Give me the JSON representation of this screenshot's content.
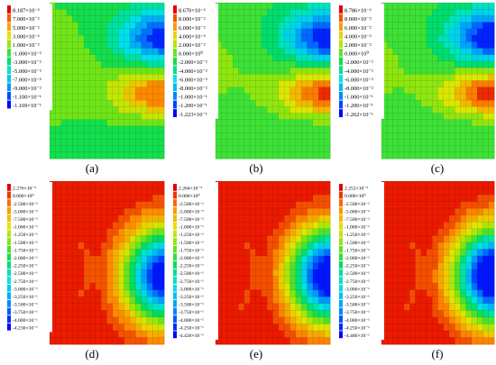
{
  "figure": {
    "captions": [
      "(a)",
      "(b)",
      "(c)",
      "(d)",
      "(e)",
      "(f)"
    ]
  },
  "chart_data": [
    {
      "type": "heatmap",
      "caption": "(a)",
      "legend_labels": [
        "8.187×10⁻²",
        "7.000×10⁻²",
        "5.000×10⁻²",
        "3.000×10⁻²",
        "1.000×10⁻²",
        "-1.000×10⁻²",
        "-3.000×10⁻²",
        "-5.000×10⁻²",
        "-7.000×10⁻²",
        "-9.000×10⁻²",
        "-1.100×10⁻¹",
        "-1.169×10⁻¹"
      ],
      "max": 0.08187,
      "min": -0.1169,
      "field": "vertical"
    },
    {
      "type": "heatmap",
      "caption": "(b)",
      "legend_labels": [
        "8.670×10⁻²",
        "8.000×10⁻²",
        "6.000×10⁻²",
        "4.000×10⁻²",
        "2.000×10⁻²",
        "0.000×10⁰",
        "-2.000×10⁻²",
        "-4.000×10⁻²",
        "-6.000×10⁻²",
        "-8.000×10⁻²",
        "-1.000×10⁻¹",
        "-1.200×10⁻¹",
        "-1.223×10⁻¹"
      ],
      "max": 0.0867,
      "min": -0.1223,
      "field": "vertical"
    },
    {
      "type": "heatmap",
      "caption": "(c)",
      "legend_labels": [
        "8.786×10⁻²",
        "8.000×10⁻²",
        "6.000×10⁻²",
        "4.000×10⁻²",
        "2.000×10⁻²",
        "0.000×10⁰",
        "-2.000×10⁻²",
        "-4.000×10⁻²",
        "-6.000×10⁻²",
        "-8.000×10⁻²",
        "-1.000×10⁻¹",
        "-1.200×10⁻¹",
        "-1.262×10⁻¹"
      ],
      "max": 0.08786,
      "min": -0.1262,
      "field": "vertical"
    },
    {
      "type": "heatmap",
      "caption": "(d)",
      "legend_labels": [
        "2.276×10⁻³",
        "0.000×10⁰",
        "-2.500×10⁻²",
        "-5.000×10⁻²",
        "-7.500×10⁻²",
        "-1.000×10⁻¹",
        "-1.250×10⁻¹",
        "-1.500×10⁻¹",
        "-1.750×10⁻¹",
        "-2.000×10⁻¹",
        "-2.250×10⁻¹",
        "-2.500×10⁻¹",
        "-2.750×10⁻¹",
        "-3.000×10⁻¹",
        "-3.250×10⁻¹",
        "-3.500×10⁻¹",
        "-3.750×10⁻¹",
        "-4.000×10⁻¹",
        "-4.236×10⁻¹"
      ],
      "max": 0.002276,
      "min": -0.4236,
      "field": "horizontal"
    },
    {
      "type": "heatmap",
      "caption": "(e)",
      "legend_labels": [
        "2.264×10⁻³",
        "0.000×10⁰",
        "-2.500×10⁻²",
        "-5.000×10⁻²",
        "-7.500×10⁻²",
        "-1.000×10⁻¹",
        "-1.250×10⁻¹",
        "-1.500×10⁻¹",
        "-1.750×10⁻¹",
        "-2.000×10⁻¹",
        "-2.250×10⁻¹",
        "-2.500×10⁻¹",
        "-2.750×10⁻¹",
        "-3.000×10⁻¹",
        "-3.250×10⁻¹",
        "-3.500×10⁻¹",
        "-3.750×10⁻¹",
        "-4.000×10⁻¹",
        "-4.250×10⁻¹",
        "-4.420×10⁻¹"
      ],
      "max": 0.002264,
      "min": -0.442,
      "field": "horizontal"
    },
    {
      "type": "heatmap",
      "caption": "(f)",
      "legend_labels": [
        "2.252×10⁻³",
        "0.000×10⁰",
        "-2.500×10⁻²",
        "-5.000×10⁻²",
        "-7.500×10⁻²",
        "-1.000×10⁻¹",
        "-1.250×10⁻¹",
        "-1.500×10⁻¹",
        "-1.750×10⁻¹",
        "-2.000×10⁻¹",
        "-2.250×10⁻¹",
        "-2.500×10⁻¹",
        "-2.750×10⁻¹",
        "-3.000×10⁻¹",
        "-3.250×10⁻¹",
        "-3.500×10⁻¹",
        "-3.750×10⁻¹",
        "-4.000×10⁻¹",
        "-4.250×10⁻¹",
        "-4.486×10⁻¹"
      ],
      "max": 0.002252,
      "min": -0.4486,
      "field": "horizontal"
    }
  ]
}
